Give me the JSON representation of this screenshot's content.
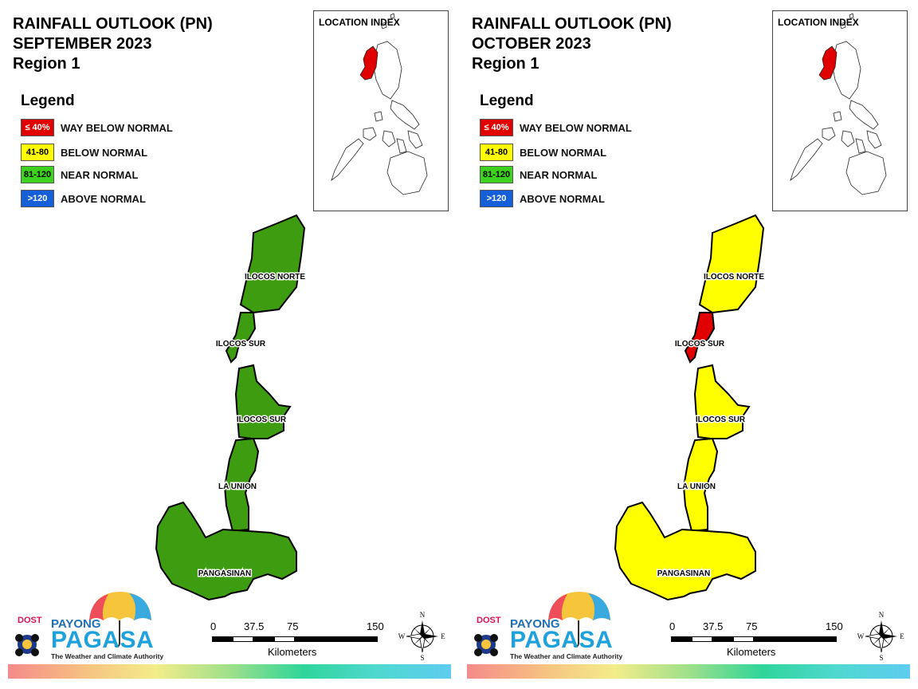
{
  "legend": {
    "title": "Legend",
    "items": [
      {
        "code": "≤ 40%",
        "label": "WAY BELOW NORMAL",
        "color": "#e00000",
        "text_color": "#ffffff"
      },
      {
        "code": "41-80",
        "label": "BELOW NORMAL",
        "color": "#ffff00",
        "text_color": "#000000"
      },
      {
        "code": "81-120",
        "label": "NEAR NORMAL",
        "color": "#3cd21e",
        "text_color": "#000000"
      },
      {
        "code": ">120",
        "label": "ABOVE NORMAL",
        "color": "#1560d8",
        "text_color": "#ffffff"
      }
    ]
  },
  "location_index": {
    "label": "LOCATION INDEX",
    "highlight_color": "#e00000"
  },
  "scale": {
    "ticks": [
      "0",
      "37.5",
      "75",
      "150"
    ],
    "unit": "Kilometers"
  },
  "compass": {
    "n": "N",
    "s": "S",
    "e": "E",
    "w": "W"
  },
  "logo": {
    "dost": "DOST",
    "payong": "PAYONG",
    "pagasa": "PAGASA",
    "tagline": "The Weather and Climate Authority"
  },
  "panels": [
    {
      "title_lines": [
        "RAINFALL OUTLOOK (PN)",
        "SEPTEMBER 2023",
        "Region 1"
      ],
      "provinces": [
        {
          "label": "ILOCOS NORTE",
          "category": "81-120",
          "fill": "#3e9c10"
        },
        {
          "label": "ILOCOS SUR",
          "category": "81-120",
          "fill": "#3e9c10"
        },
        {
          "label": "ILOCOS SUR",
          "category": "81-120",
          "fill": "#3e9c10"
        },
        {
          "label": "LA UNION",
          "category": "81-120",
          "fill": "#3e9c10"
        },
        {
          "label": "PANGASINAN",
          "category": "81-120",
          "fill": "#3e9c10"
        }
      ],
      "highlight_fill": "#3e9c10"
    },
    {
      "title_lines": [
        "RAINFALL OUTLOOK (PN)",
        "OCTOBER 2023",
        "Region 1"
      ],
      "provinces": [
        {
          "label": "ILOCOS NORTE",
          "category": "41-80",
          "fill": "#ffff00"
        },
        {
          "label": "ILOCOS SUR",
          "category": "≤ 40%",
          "fill": "#e00000"
        },
        {
          "label": "ILOCOS SUR",
          "category": "41-80",
          "fill": "#ffff00"
        },
        {
          "label": "LA UNION",
          "category": "41-80",
          "fill": "#ffff00"
        },
        {
          "label": "PANGASINAN",
          "category": "41-80",
          "fill": "#ffff00"
        }
      ],
      "highlight_fill": "#e00000"
    }
  ]
}
